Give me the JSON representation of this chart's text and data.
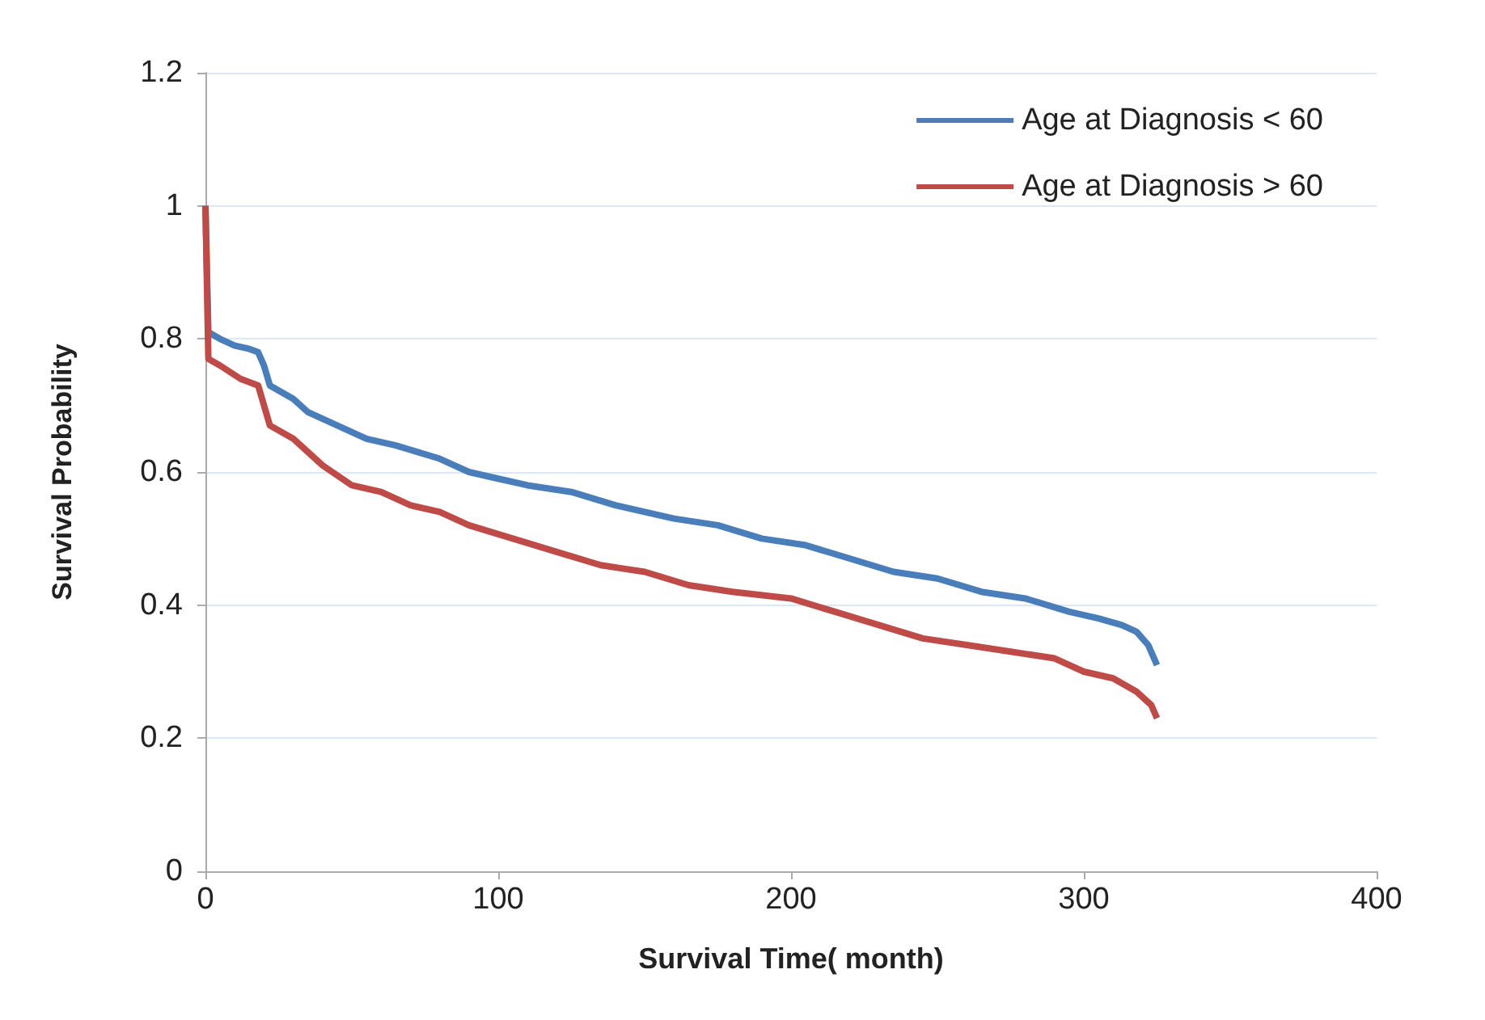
{
  "chart_data": {
    "type": "line",
    "xlabel": "Survival Time( month)",
    "ylabel": "Survival Probability",
    "xlim": [
      0,
      400
    ],
    "xticks": [
      0,
      100,
      200,
      300,
      400
    ],
    "ylim": [
      0,
      1.2
    ],
    "yticks": [
      0,
      0.2,
      0.4,
      0.6,
      0.8,
      1,
      1.2
    ],
    "grid": "y",
    "legend": "top right",
    "marker": "none",
    "line_style": "solid",
    "series": [
      {
        "name": "Age at Diagnosis < 60",
        "color": "#4a7ebb",
        "x": [
          0,
          1,
          5,
          10,
          15,
          18,
          20,
          22,
          30,
          35,
          45,
          55,
          65,
          80,
          90,
          100,
          110,
          125,
          140,
          160,
          175,
          190,
          205,
          220,
          235,
          250,
          265,
          280,
          295,
          305,
          313,
          318,
          322,
          325
        ],
        "values": [
          1.0,
          0.81,
          0.8,
          0.79,
          0.785,
          0.78,
          0.76,
          0.73,
          0.71,
          0.69,
          0.67,
          0.65,
          0.64,
          0.62,
          0.6,
          0.59,
          0.58,
          0.57,
          0.55,
          0.53,
          0.52,
          0.5,
          0.49,
          0.47,
          0.45,
          0.44,
          0.42,
          0.41,
          0.39,
          0.38,
          0.37,
          0.36,
          0.34,
          0.31
        ]
      },
      {
        "name": "Age at Diagnosis > 60",
        "color": "#be4b48",
        "x": [
          0,
          1,
          5,
          12,
          18,
          20,
          22,
          30,
          40,
          50,
          60,
          70,
          80,
          90,
          105,
          120,
          135,
          150,
          165,
          180,
          200,
          215,
          230,
          245,
          260,
          275,
          290,
          300,
          310,
          318,
          323,
          325
        ],
        "values": [
          1.0,
          0.77,
          0.76,
          0.74,
          0.73,
          0.7,
          0.67,
          0.65,
          0.61,
          0.58,
          0.57,
          0.55,
          0.54,
          0.52,
          0.5,
          0.48,
          0.46,
          0.45,
          0.43,
          0.42,
          0.41,
          0.39,
          0.37,
          0.35,
          0.34,
          0.33,
          0.32,
          0.3,
          0.29,
          0.27,
          0.25,
          0.23
        ]
      }
    ]
  }
}
